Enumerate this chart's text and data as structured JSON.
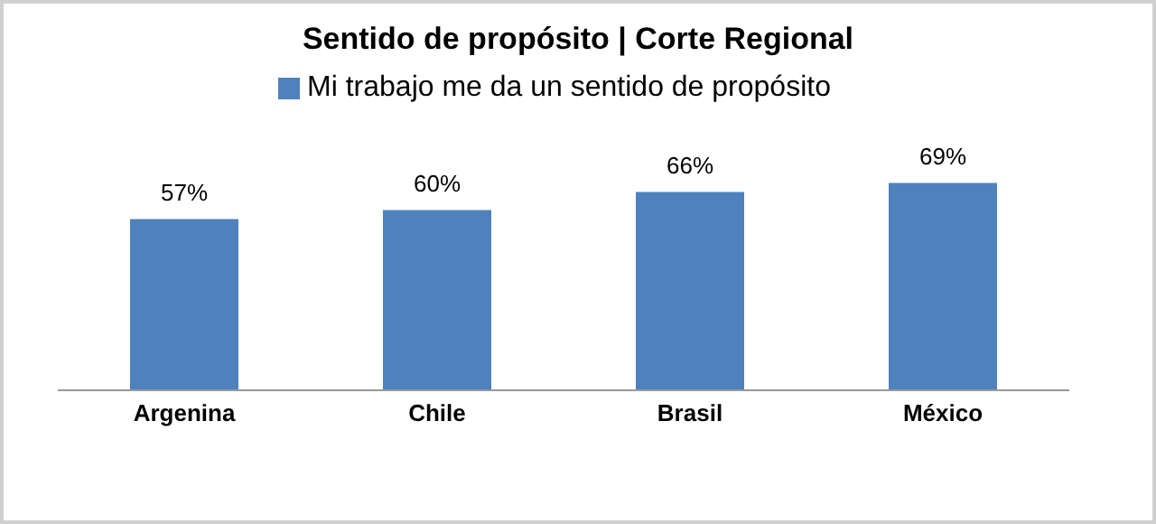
{
  "chart_data": {
    "type": "bar",
    "title": "Sentido de propósito | Corte Regional",
    "categories": [
      "Argenina",
      "Chile",
      "Brasil",
      "México"
    ],
    "series": [
      {
        "name": "Mi trabajo me da un sentido de propósito",
        "color": "#4f81bd",
        "values": [
          57,
          60,
          66,
          69
        ],
        "value_labels": [
          "57%",
          "60%",
          "66%",
          "69%"
        ]
      }
    ],
    "legend": "top",
    "grid": false
  }
}
